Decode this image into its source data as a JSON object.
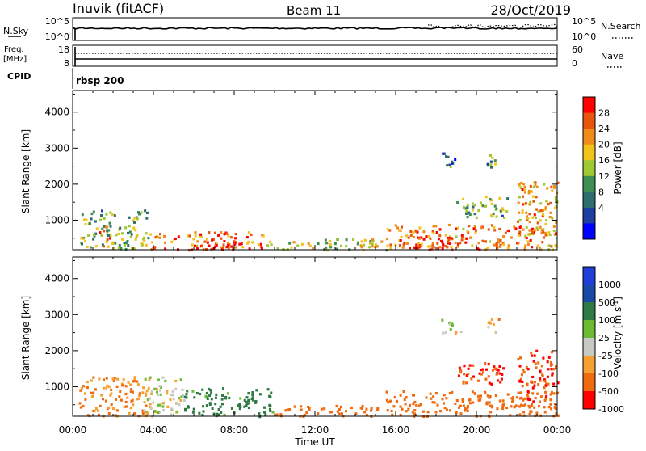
{
  "header": {
    "station": "Inuvik (fitACF)",
    "beam": "Beam 11",
    "date": "28/Oct/2019"
  },
  "sky_panel": {
    "left_label": "N.Sky",
    "left_ticks": [
      "10^5",
      "10^0"
    ],
    "right_label": "N.Search",
    "right_ticks": [
      "10^5",
      "10^0"
    ]
  },
  "freq_panel": {
    "left_label_1": "Freq.",
    "left_label_2": "[MHz]",
    "left_ticks": [
      "18",
      "8"
    ],
    "right_label": "Nave",
    "right_ticks": [
      "60",
      "0"
    ]
  },
  "cpid": {
    "label": "CPID",
    "value": "rbsp 200"
  },
  "x_axis": {
    "ticks": [
      "00:00",
      "04:00",
      "08:00",
      "12:00",
      "16:00",
      "20:00",
      "00:00"
    ],
    "label": "Time UT"
  },
  "power_panel": {
    "ylabel": "Slant Range [km]",
    "yticks": [
      "4000",
      "3000",
      "2000",
      "1000"
    ],
    "colorbar_label": "Power [dB]",
    "colorbar_ticks": [
      "28",
      "24",
      "20",
      "16",
      "12",
      "8",
      "4"
    ]
  },
  "velocity_panel": {
    "ylabel": "Slant Range [km]",
    "yticks": [
      "4000",
      "3000",
      "2000",
      "1000"
    ],
    "colorbar_label": "Velocity [m s",
    "colorbar_label_sup": "-1",
    "colorbar_label_end": "]",
    "colorbar_ticks": [
      "1000",
      "500",
      "100",
      "25",
      "-25",
      "-100",
      "-500",
      "-1000"
    ]
  },
  "colors": {
    "power_scale": [
      "#0000ff",
      "#1e3fa0",
      "#2f6e6e",
      "#3e8e54",
      "#9ec932",
      "#f2c21b",
      "#f08a18",
      "#e8560e",
      "#ff0000"
    ],
    "velocity_scale": [
      "#ff0000",
      "#f06a10",
      "#f5a030",
      "#c8c8c4",
      "#6aba34",
      "#2f7a44",
      "#1a4aa8",
      "#1f3fd8"
    ]
  },
  "chart_data": [
    {
      "type": "heatmap",
      "title": "Power",
      "xlabel": "",
      "ylabel": "Slant Range [km]",
      "xlim_hours": [
        0,
        24
      ],
      "ylim_km": [
        180,
        4600
      ],
      "colorbar": {
        "label": "Power [dB]",
        "range": [
          0,
          32
        ],
        "ticks": [
          4,
          8,
          12,
          16,
          20,
          24,
          28
        ]
      },
      "echo_regions": [
        {
          "t_start": 0.3,
          "t_end": 3.8,
          "r_start": 200,
          "r_end": 1300,
          "value": 14
        },
        {
          "t_start": 1.2,
          "t_end": 1.8,
          "r_start": 300,
          "r_end": 900,
          "value": 26
        },
        {
          "t_start": 3.8,
          "t_end": 9.5,
          "r_start": 200,
          "r_end": 700,
          "value": 26
        },
        {
          "t_start": 6.0,
          "t_end": 8.0,
          "r_start": 200,
          "r_end": 650,
          "value": 30
        },
        {
          "t_start": 9.5,
          "t_end": 15.5,
          "r_start": 200,
          "r_end": 500,
          "value": 18
        },
        {
          "t_start": 15.5,
          "t_end": 24.0,
          "r_start": 200,
          "r_end": 900,
          "value": 24
        },
        {
          "t_start": 16.5,
          "t_end": 19.5,
          "r_start": 200,
          "r_end": 600,
          "value": 30
        },
        {
          "t_start": 18.2,
          "t_end": 19.2,
          "r_start": 2500,
          "r_end": 2900,
          "value": 8
        },
        {
          "t_start": 20.5,
          "t_end": 21.1,
          "r_start": 2500,
          "r_end": 2900,
          "value": 12
        },
        {
          "t_start": 19.0,
          "t_end": 21.5,
          "r_start": 1100,
          "r_end": 1700,
          "value": 14
        },
        {
          "t_start": 22.0,
          "t_end": 24.0,
          "r_start": 600,
          "r_end": 2100,
          "value": 22
        }
      ]
    },
    {
      "type": "heatmap",
      "title": "Velocity",
      "xlabel": "Time UT",
      "ylabel": "Slant Range [km]",
      "xlim_hours": [
        0,
        24
      ],
      "ylim_km": [
        180,
        4600
      ],
      "colorbar": {
        "label": "Velocity [m s^-1]",
        "range": [
          -1000,
          1000
        ],
        "ticks": [
          1000,
          500,
          100,
          25,
          -25,
          -100,
          -500,
          -1000
        ]
      },
      "echo_regions": [
        {
          "t_start": 0.3,
          "t_end": 3.8,
          "r_start": 200,
          "r_end": 1300,
          "value": -100
        },
        {
          "t_start": 3.5,
          "t_end": 5.5,
          "r_start": 200,
          "r_end": 1300,
          "value": 0
        },
        {
          "t_start": 5.5,
          "t_end": 10.0,
          "r_start": 200,
          "r_end": 1000,
          "value": 150
        },
        {
          "t_start": 10.0,
          "t_end": 15.5,
          "r_start": 200,
          "r_end": 500,
          "value": -200
        },
        {
          "t_start": 15.5,
          "t_end": 24.0,
          "r_start": 200,
          "r_end": 900,
          "value": -300
        },
        {
          "t_start": 18.2,
          "t_end": 19.2,
          "r_start": 2500,
          "r_end": 2900,
          "value": 0
        },
        {
          "t_start": 20.5,
          "t_end": 21.1,
          "r_start": 2500,
          "r_end": 2900,
          "value": -50
        },
        {
          "t_start": 19.0,
          "t_end": 21.5,
          "r_start": 1100,
          "r_end": 1700,
          "value": -500
        },
        {
          "t_start": 22.0,
          "t_end": 24.0,
          "r_start": 600,
          "r_end": 2100,
          "value": -500
        }
      ]
    }
  ]
}
